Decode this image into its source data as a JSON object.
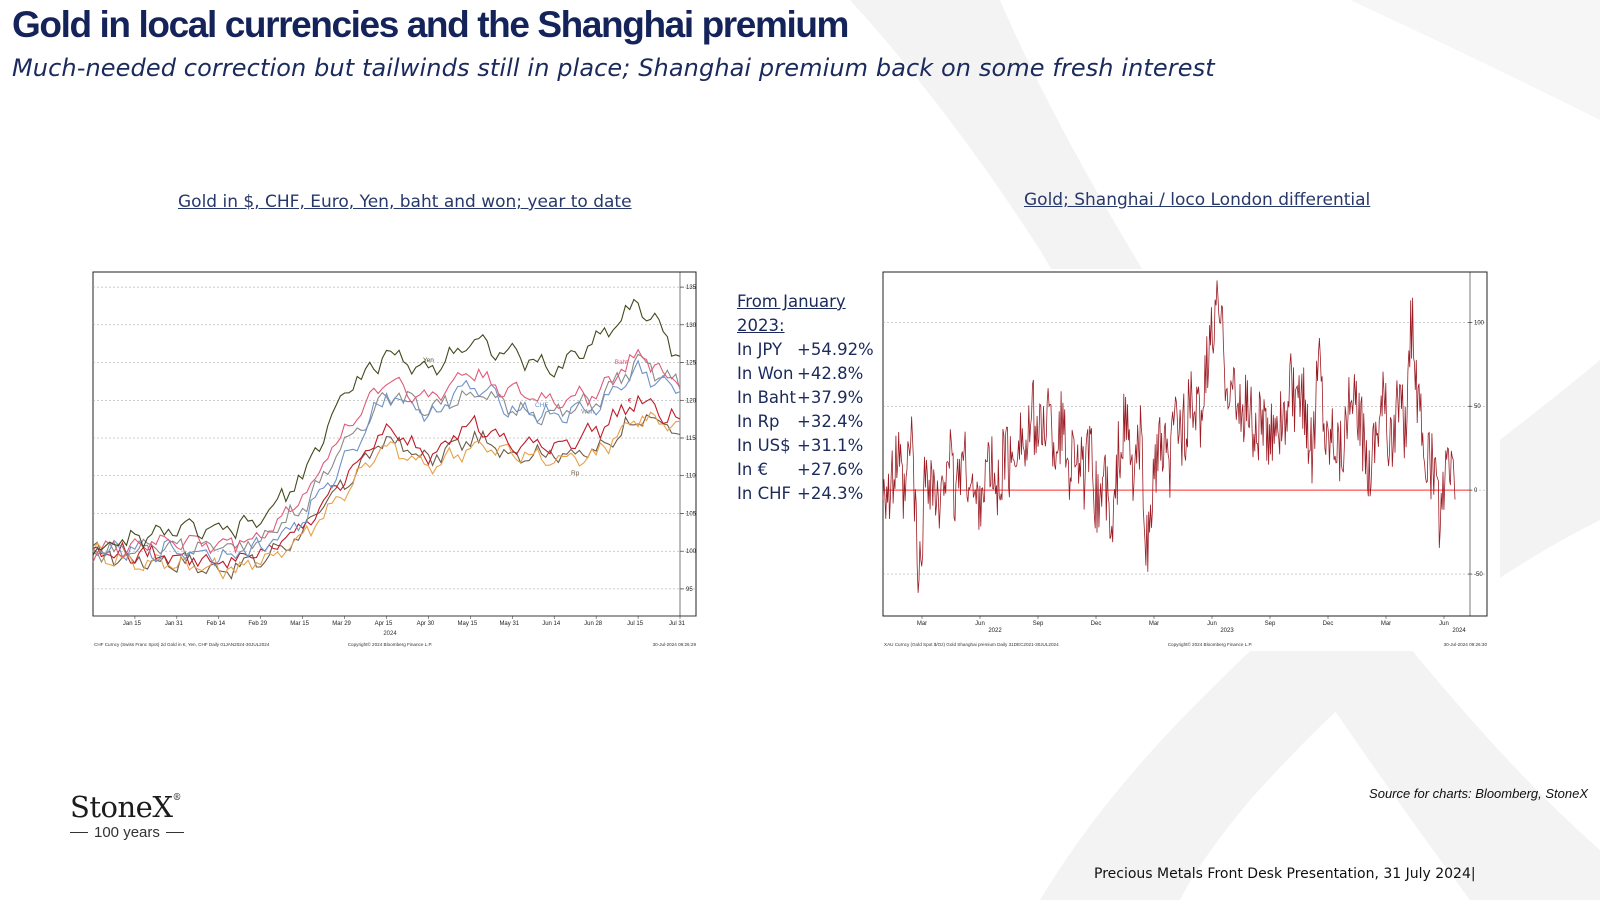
{
  "slide": {
    "title": "Gold in local currencies and the Shanghai premium",
    "subtitle": "Much-needed correction but tailwinds still in place; Shanghai premium back on some fresh interest",
    "source": "Source for charts: Bloomberg, StoneX",
    "footer": "Precious Metals Front Desk Presentation, 31 July 2024|",
    "logo_name": "StoneX",
    "logo_mark": "®",
    "logo_years": "100 years"
  },
  "stats": {
    "heading": "From January 2023:",
    "rows": [
      {
        "label": "In JPY",
        "value": "+54.92%"
      },
      {
        "label": "In Won",
        "value": "+42.8%"
      },
      {
        "label": "In Baht",
        "value": "+37.9%"
      },
      {
        "label": "In Rp",
        "value": "+32.4%"
      },
      {
        "label": "In US$",
        "value": "+31.1%"
      },
      {
        "label": "In €",
        "value": "+27.6%"
      },
      {
        "label": "In CHF",
        "value": "+24.3%"
      }
    ]
  },
  "chart_data": [
    {
      "type": "line",
      "title": "Gold in $, CHF, Euro, Yen, baht and won; year to date",
      "xlabel": "2024",
      "ylabel": "",
      "ylim": [
        93,
        137
      ],
      "grid": true,
      "y_ticks": [
        95,
        100,
        105,
        110,
        115,
        120,
        125,
        130,
        135
      ],
      "x_ticks": [
        "Jan 15",
        "Jan 31",
        "Feb 14",
        "Feb 29",
        "Mar 15",
        "Mar 29",
        "Apr 15",
        "Apr 30",
        "May 15",
        "May 31",
        "Jun 14",
        "Jun 28",
        "Jul 15",
        "Jul 31"
      ],
      "x": [
        "Jan 1",
        "Jan 15",
        "Jan 31",
        "Feb 14",
        "Feb 29",
        "Mar 15",
        "Mar 29",
        "Apr 15",
        "Apr 30",
        "May 15",
        "May 31",
        "Jun 14",
        "Jun 28",
        "Jul 15",
        "Jul 31"
      ],
      "series": [
        {
          "name": "Yen",
          "color": "#3f4a1c",
          "values": [
            100,
            101.5,
            103,
            102.5,
            104,
            110,
            121,
            126,
            124,
            128,
            126,
            124,
            128,
            133,
            126
          ]
        },
        {
          "name": "Baht",
          "color": "#e05a7a",
          "values": [
            100,
            100.8,
            101.5,
            100.8,
            102,
            107,
            116,
            123,
            120,
            124,
            121,
            120,
            121,
            126,
            122
          ]
        },
        {
          "name": "CHF",
          "color": "#6d92c8",
          "values": [
            100,
            100,
            100.2,
            99.5,
            100.5,
            104,
            112,
            121,
            118,
            122,
            119,
            118,
            119,
            124,
            121
          ]
        },
        {
          "name": "Won",
          "color": "#8a8a8a",
          "values": [
            100,
            100.3,
            101,
            100.2,
            101.5,
            106,
            114,
            121,
            119,
            121,
            119,
            118,
            120,
            125,
            122
          ]
        },
        {
          "name": "€",
          "color": "#c01a26",
          "values": [
            100,
            99.5,
            99.5,
            98.5,
            99.5,
            103,
            110,
            116,
            113,
            117,
            114,
            114,
            116,
            120,
            117
          ]
        },
        {
          "name": "$",
          "color": "#e8a04a",
          "values": [
            100,
            98.5,
            98.5,
            97.5,
            98.5,
            102,
            108,
            114,
            111,
            114,
            113,
            112,
            113,
            118,
            116
          ]
        },
        {
          "name": "Rp",
          "color": "#6b5a48",
          "values": [
            100,
            98.8,
            98.6,
            97.5,
            98.8,
            102.5,
            109,
            115,
            112,
            115,
            113,
            113,
            113,
            118,
            116
          ]
        }
      ],
      "footer_left": "CHF Curncy (Swiss Franc Spot) 2d Gold in €, Yen, CHF  Daily 01JAN2024-30JUL2024",
      "footer_mid": "Copyright© 2024 Bloomberg Finance L.P.",
      "footer_right": "30-Jul-2024 09:26:29"
    },
    {
      "type": "line",
      "title": "Gold; Shanghai / loco London differential",
      "xlabel": "",
      "ylabel": "",
      "ylim": [
        -75,
        130
      ],
      "grid": true,
      "y_ticks": [
        -50,
        0,
        50,
        100
      ],
      "x_ticks": [
        "Mar",
        "Jun",
        "Sep",
        "Dec",
        "Mar",
        "Jun",
        "Sep",
        "Dec",
        "Mar",
        "Jun"
      ],
      "year_labels": [
        "2022",
        "2023",
        "2024"
      ],
      "reference_line": 0,
      "series": [
        {
          "name": "",
          "color": "#9b1c24",
          "values": [
            10,
            -5,
            20,
            -10,
            35,
            -60,
            15,
            5,
            -20,
            30,
            -5,
            20,
            10,
            -10,
            5,
            15,
            -5,
            25,
            10,
            40,
            20,
            45,
            30,
            50,
            25,
            40,
            15,
            30,
            5,
            20,
            -10,
            10,
            -35,
            25,
            40,
            5,
            30,
            -40,
            15,
            25,
            10,
            45,
            35,
            50,
            40,
            60,
            95,
            110,
            70,
            60,
            40,
            55,
            30,
            45,
            20,
            50,
            35,
            60,
            45,
            55,
            20,
            85,
            30,
            40,
            25,
            45,
            50,
            35,
            15,
            40,
            60,
            20,
            55,
            35,
            105,
            40,
            20,
            10,
            -20,
            15,
            5
          ]
        }
      ],
      "footer_left": "XAU Curncy (Gold Spot   $/Oz) Gold Shanghai premium  Daily 31DEC2021-30JUL2024",
      "footer_mid": "Copyright© 2024 Bloomberg Finance L.P.",
      "footer_right": "30-Jul-2024 09:26:30"
    }
  ]
}
